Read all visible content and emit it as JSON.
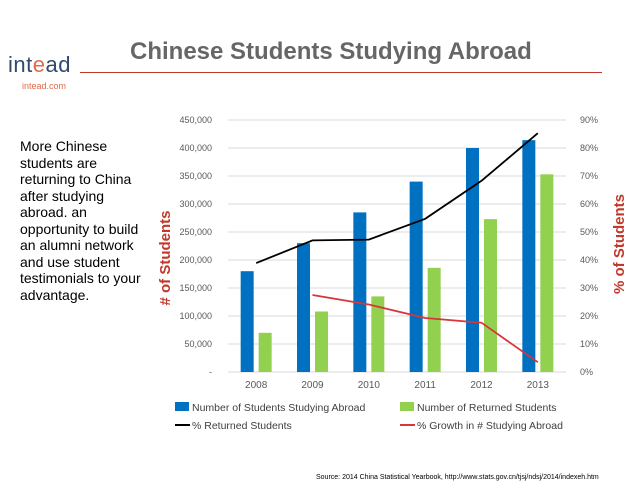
{
  "header": {
    "logo_main": "int",
    "logo_accent": "e",
    "logo_end": "ad",
    "logo_url": "intead.com",
    "title": "Chinese Students Studying Abroad"
  },
  "sidebar": {
    "text": "More Chinese students are returning to China after studying abroad. an opportunity to build an alumni network and use student testimonials to your advantage."
  },
  "footer": {
    "source": "Source: 2014 China Statistical Yearbook, http://www.stats.gov.cn/tjsj/ndsj/2014/indexeh.htm"
  },
  "colors": {
    "bar_abroad": "#0070c0",
    "bar_returned": "#92d050",
    "line_returned_pct": "#000000",
    "line_growth_pct": "#d9353b",
    "title_accent": "#c0392b"
  },
  "chart_data": {
    "type": "bar",
    "title": "",
    "xlabel": "",
    "ylabel": "# of Students",
    "y2label": "% of Students",
    "ylim": [
      0,
      450000
    ],
    "y2lim": [
      0,
      90
    ],
    "y_ticks": [
      "-",
      "50,000",
      "100,000",
      "150,000",
      "200,000",
      "250,000",
      "300,000",
      "350,000",
      "400,000",
      "450,000"
    ],
    "y2_ticks": [
      "0%",
      "10%",
      "20%",
      "30%",
      "40%",
      "50%",
      "60%",
      "70%",
      "80%",
      "90%"
    ],
    "categories": [
      "2008",
      "2009",
      "2010",
      "2011",
      "2012",
      "2013"
    ],
    "series": [
      {
        "name": "Number of Students Studying Abroad",
        "type": "bar",
        "axis": "left",
        "values": [
          180000,
          230000,
          285000,
          340000,
          400000,
          414000
        ]
      },
      {
        "name": "Number  of Returned Students",
        "type": "bar",
        "axis": "left",
        "values": [
          70000,
          108000,
          135000,
          186000,
          273000,
          353000
        ]
      },
      {
        "name": "% Returned Students",
        "type": "line",
        "axis": "right",
        "values": [
          38.9,
          47,
          47.3,
          54.7,
          68.3,
          85.3
        ]
      },
      {
        "name": "% Growth in # Studying Abroad",
        "type": "line",
        "axis": "right",
        "values": [
          null,
          27.5,
          24.1,
          19.3,
          17.6,
          3.5
        ]
      }
    ],
    "legend_position": "bottom",
    "grid": true
  }
}
